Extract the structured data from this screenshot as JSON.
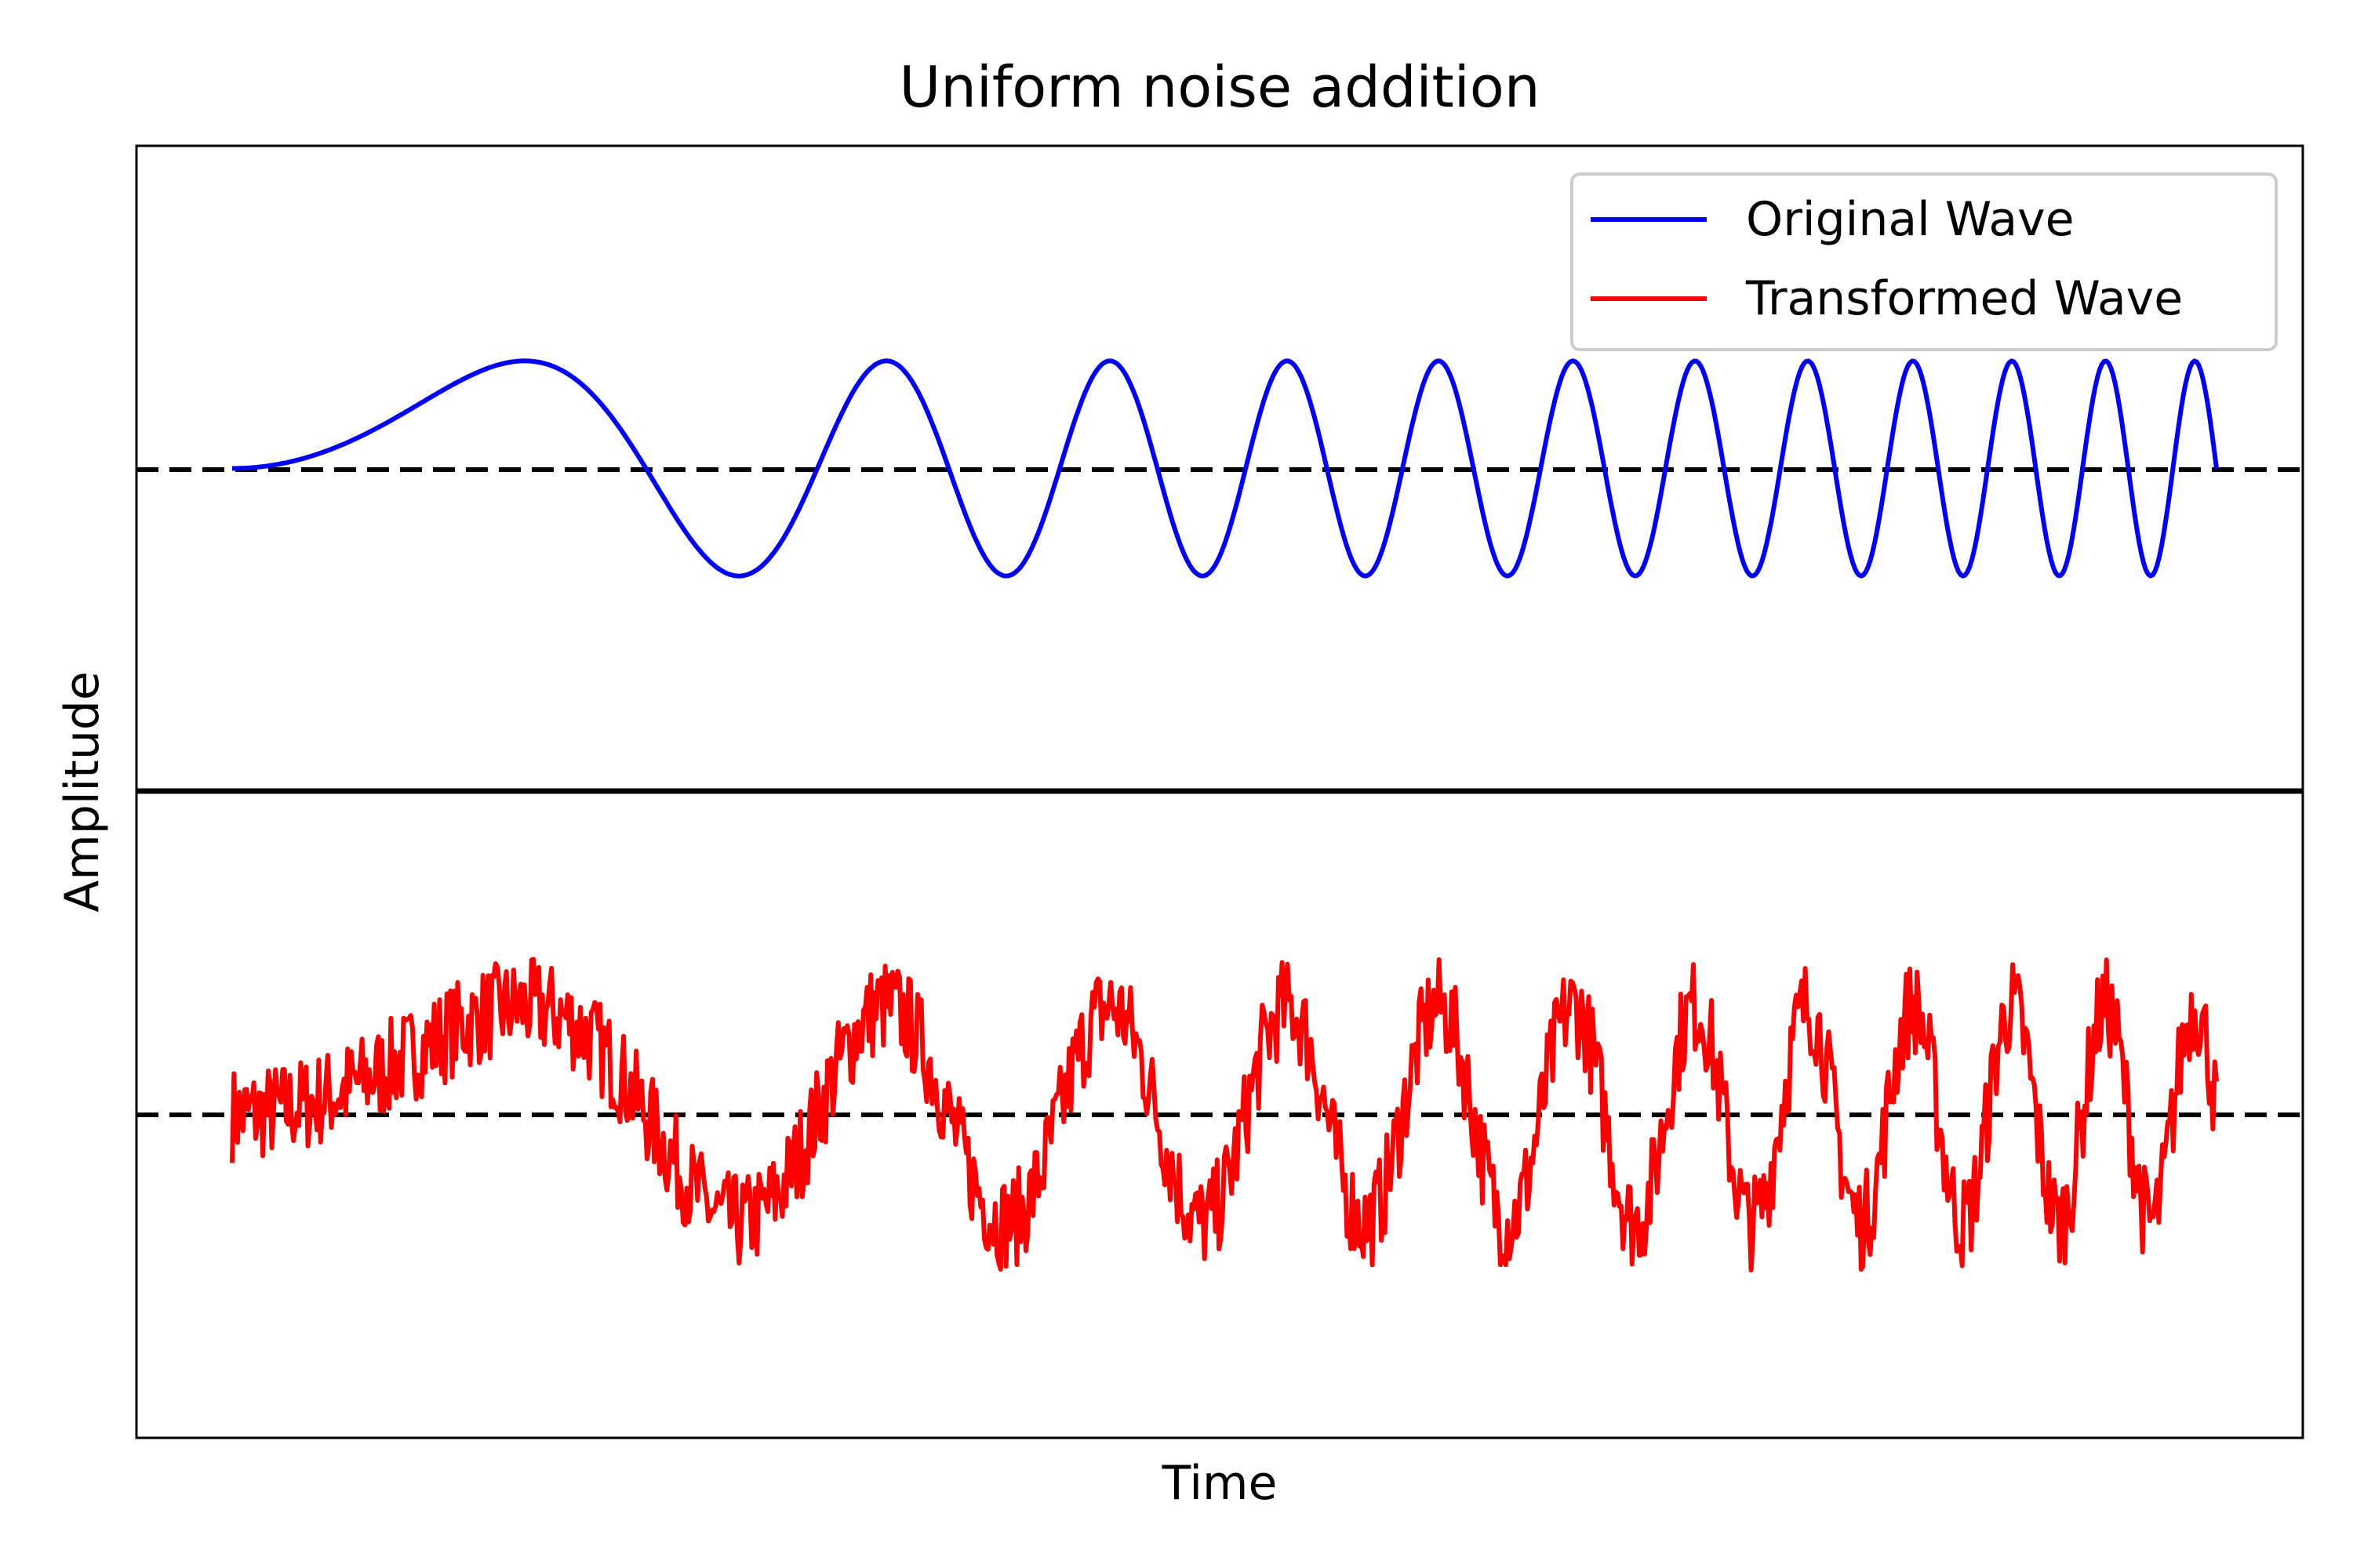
{
  "chart_data": {
    "type": "line",
    "title": "Uniform noise addition",
    "xlabel": "Time",
    "ylabel": "Amplitude",
    "ticks_visible": false,
    "legend": {
      "placement": "top-right",
      "entries": [
        {
          "label": "Original Wave",
          "color": "#0000ff"
        },
        {
          "label": "Transformed Wave",
          "color": "#ff0000"
        }
      ]
    },
    "x_range": [
      0,
      1
    ],
    "panels": [
      {
        "name": "top",
        "series": "Original Wave",
        "color": "#0000ff",
        "ylim": [
          -3,
          3
        ],
        "baseline": 0,
        "signal": {
          "form": "chirp",
          "amplitude": 1,
          "phase_exponent": 2,
          "cycles": 11.5,
          "noise": 0
        }
      },
      {
        "name": "bottom",
        "series": "Transformed Wave",
        "color": "#ff0000",
        "ylim": [
          -3,
          3
        ],
        "baseline": 0,
        "signal": {
          "form": "chirp",
          "amplitude": 1,
          "phase_exponent": 2,
          "cycles": 11.5,
          "noise": 0.45,
          "samples": 1100
        }
      }
    ]
  }
}
